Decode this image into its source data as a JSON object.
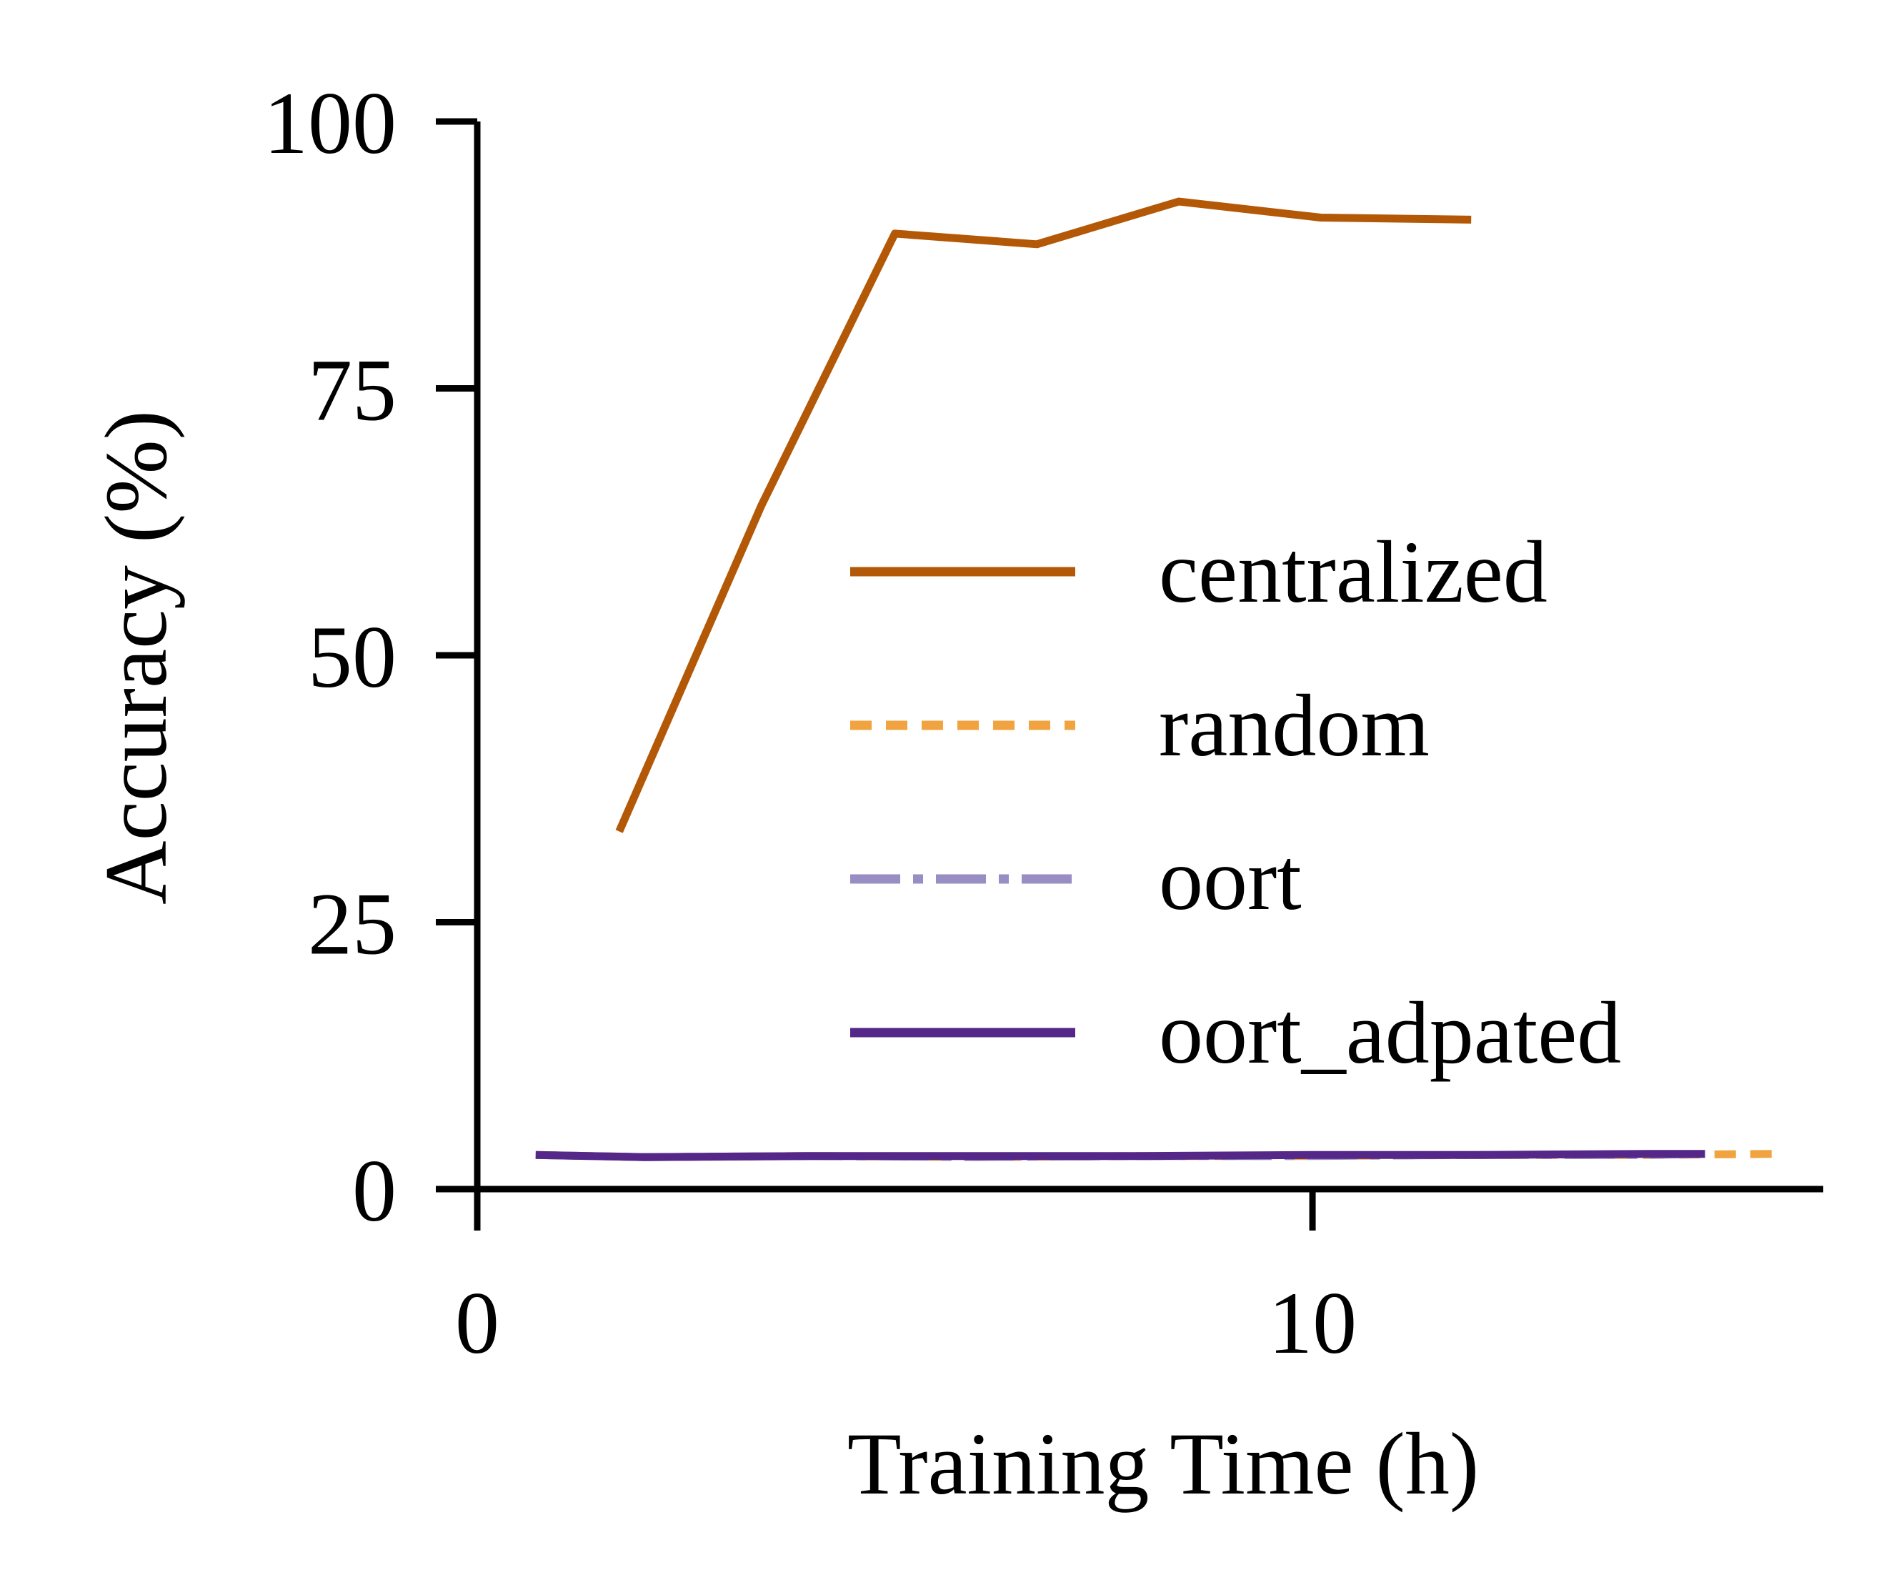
{
  "chart_data": {
    "type": "line",
    "xlabel": "Training Time (h)",
    "ylabel": "Accuracy (%)",
    "xlim": [
      0,
      16
    ],
    "ylim": [
      0,
      100
    ],
    "xticks": [
      0,
      10
    ],
    "yticks": [
      0,
      25,
      50,
      75,
      100
    ],
    "legend_position": "center-right",
    "grid": false,
    "series": [
      {
        "name": "centralized",
        "color": "#b35806",
        "dash": "solid",
        "x": [
          1.7,
          3.4,
          5.0,
          6.7,
          8.4,
          10.1,
          11.9
        ],
        "y": [
          33.5,
          64.0,
          89.5,
          88.5,
          92.5,
          91.0,
          90.8
        ]
      },
      {
        "name": "random",
        "color": "#f1a340",
        "dash": "dashed",
        "x": [
          0.7,
          2.0,
          4.0,
          6.0,
          8.0,
          10.0,
          12.0,
          14.0,
          15.5
        ],
        "y": [
          3.2,
          3.0,
          3.1,
          3.0,
          3.1,
          3.1,
          3.2,
          3.2,
          3.3
        ]
      },
      {
        "name": "oort",
        "color": "#998ec3",
        "dash": "dashdot",
        "x": [
          0.7,
          2.0,
          4.0,
          6.0,
          8.0,
          10.0,
          12.0,
          14.0,
          14.7
        ],
        "y": [
          3.2,
          3.0,
          3.1,
          3.0,
          3.1,
          3.1,
          3.2,
          3.2,
          3.3
        ]
      },
      {
        "name": "oort_adpated",
        "color": "#542788",
        "dash": "solid",
        "x": [
          0.7,
          2.0,
          4.0,
          6.0,
          8.0,
          10.0,
          12.0,
          14.0,
          14.7
        ],
        "y": [
          3.2,
          3.0,
          3.1,
          3.1,
          3.1,
          3.2,
          3.2,
          3.3,
          3.3
        ]
      }
    ]
  }
}
